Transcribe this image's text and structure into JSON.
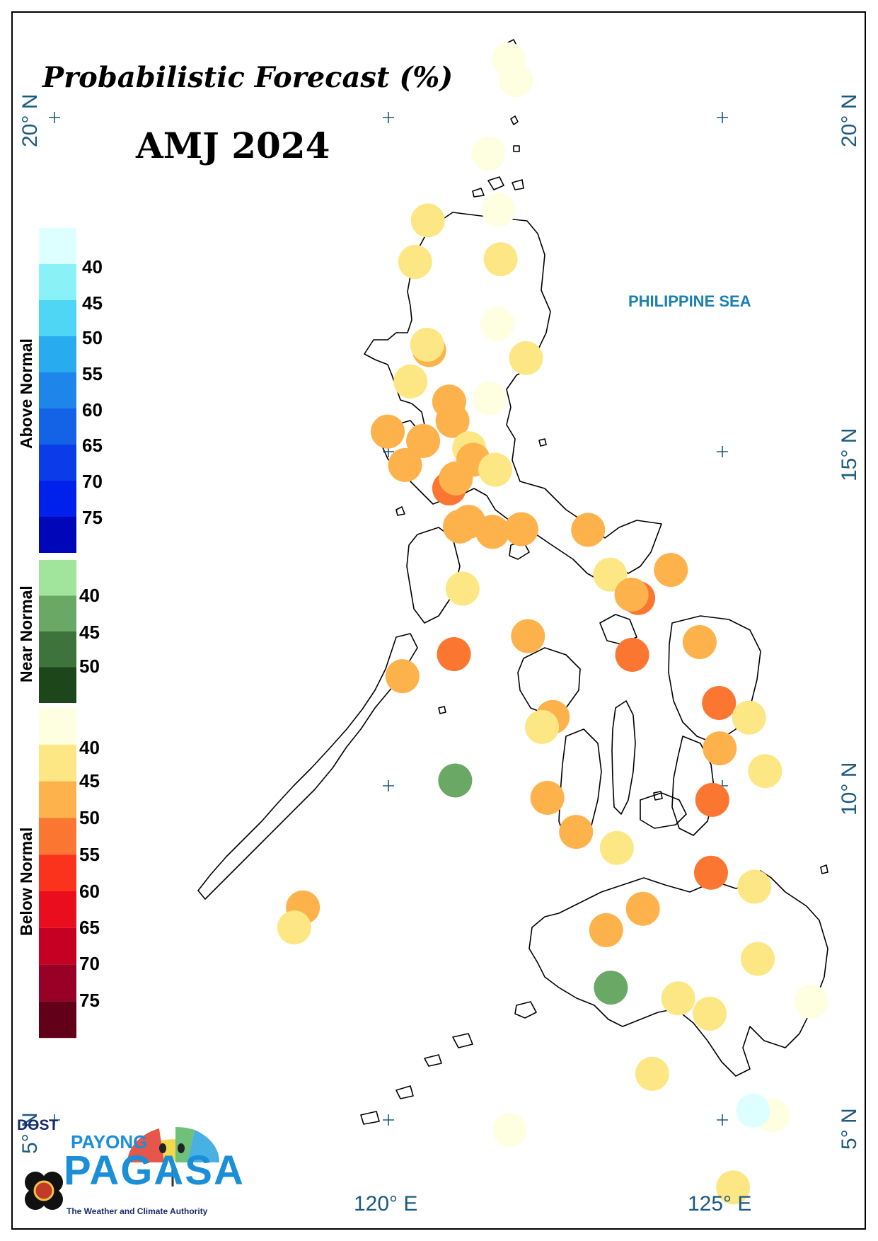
{
  "title": "Probabilistic Forecast (%)",
  "season": "AMJ 2024",
  "sea_label": "PHILIPPINE SEA",
  "lat_labels": [
    "20° N",
    "15° N",
    "10° N",
    "5° N"
  ],
  "lon_labels": [
    "120° E",
    "125° E"
  ],
  "legend": {
    "above": {
      "label": "Above Normal",
      "ticks": [
        "40",
        "45",
        "50",
        "55",
        "60",
        "65",
        "70",
        "75"
      ],
      "colors": [
        "#ddffff",
        "#8af1f6",
        "#50d6f5",
        "#29abef",
        "#1e86ea",
        "#1462e6",
        "#0a3de8",
        "#0020ec",
        "#0007b8"
      ]
    },
    "near": {
      "label": "Near Normal",
      "ticks": [
        "40",
        "45",
        "50"
      ],
      "colors": [
        "#a0e59b",
        "#6aa866",
        "#3e743c",
        "#1d471b"
      ]
    },
    "below": {
      "label": "Below Normal",
      "ticks": [
        "40",
        "45",
        "50",
        "55",
        "60",
        "65",
        "70",
        "75"
      ],
      "colors": [
        "#fefee0",
        "#fde784",
        "#fdb24c",
        "#fb7630",
        "#fc331c",
        "#ea0d1d",
        "#c50023",
        "#990026",
        "#620019"
      ]
    }
  },
  "logo": {
    "dost": "DOST",
    "payong": "PAYONG",
    "pagasa": "PAGASA",
    "tagline": "The Weather and Climate Authority"
  },
  "stations": [
    {
      "lon": 121.8,
      "lat": 20.87,
      "cat": "below",
      "bin": "<40"
    },
    {
      "lon": 121.91,
      "lat": 20.56,
      "cat": "below",
      "bin": "<40"
    },
    {
      "lon": 121.5,
      "lat": 19.46,
      "cat": "below",
      "bin": "<40"
    },
    {
      "lon": 121.65,
      "lat": 18.62,
      "cat": "below",
      "bin": "<40"
    },
    {
      "lon": 120.59,
      "lat": 18.46,
      "cat": "below",
      "bin": "40-45"
    },
    {
      "lon": 121.68,
      "lat": 17.88,
      "cat": "below",
      "bin": "40-45"
    },
    {
      "lon": 120.4,
      "lat": 17.84,
      "cat": "below",
      "bin": "40-45"
    },
    {
      "lon": 121.63,
      "lat": 16.91,
      "cat": "below",
      "bin": "<40"
    },
    {
      "lon": 120.61,
      "lat": 16.52,
      "cat": "below",
      "bin": "45-50"
    },
    {
      "lon": 120.58,
      "lat": 16.6,
      "cat": "below",
      "bin": "40-45"
    },
    {
      "lon": 122.06,
      "lat": 16.4,
      "cat": "below",
      "bin": "40-45"
    },
    {
      "lon": 120.33,
      "lat": 16.05,
      "cat": "below",
      "bin": "40-45"
    },
    {
      "lon": 121.52,
      "lat": 15.8,
      "cat": "below",
      "bin": "<40"
    },
    {
      "lon": 120.91,
      "lat": 15.75,
      "cat": "below",
      "bin": "45-50"
    },
    {
      "lon": 120.96,
      "lat": 15.46,
      "cat": "below",
      "bin": "45-50"
    },
    {
      "lon": 119.99,
      "lat": 15.3,
      "cat": "below",
      "bin": "45-50"
    },
    {
      "lon": 120.52,
      "lat": 15.16,
      "cat": "below",
      "bin": "45-50"
    },
    {
      "lon": 121.21,
      "lat": 15.05,
      "cat": "below",
      "bin": "40-45"
    },
    {
      "lon": 121.27,
      "lat": 14.88,
      "cat": "below",
      "bin": "45-50"
    },
    {
      "lon": 120.25,
      "lat": 14.8,
      "cat": "below",
      "bin": "45-50"
    },
    {
      "lon": 121.6,
      "lat": 14.73,
      "cat": "below",
      "bin": "40-45"
    },
    {
      "lon": 120.91,
      "lat": 14.45,
      "cat": "below",
      "bin": "50-55"
    },
    {
      "lon": 121.01,
      "lat": 14.6,
      "cat": "below",
      "bin": "45-50"
    },
    {
      "lon": 121.2,
      "lat": 13.95,
      "cat": "below",
      "bin": "45-50"
    },
    {
      "lon": 121.07,
      "lat": 13.88,
      "cat": "below",
      "bin": "45-50"
    },
    {
      "lon": 121.56,
      "lat": 13.8,
      "cat": "below",
      "bin": "45-50"
    },
    {
      "lon": 121.99,
      "lat": 13.84,
      "cat": "below",
      "bin": "45-50"
    },
    {
      "lon": 122.99,
      "lat": 13.83,
      "cat": "below",
      "bin": "45-50"
    },
    {
      "lon": 123.32,
      "lat": 13.16,
      "cat": "below",
      "bin": "40-45"
    },
    {
      "lon": 124.23,
      "lat": 13.23,
      "cat": "below",
      "bin": "45-50"
    },
    {
      "lon": 121.11,
      "lat": 12.95,
      "cat": "below",
      "bin": "40-45"
    },
    {
      "lon": 123.74,
      "lat": 12.81,
      "cat": "below",
      "bin": "50-55"
    },
    {
      "lon": 123.64,
      "lat": 12.86,
      "cat": "below",
      "bin": "45-50"
    },
    {
      "lon": 122.09,
      "lat": 12.24,
      "cat": "below",
      "bin": "45-50"
    },
    {
      "lon": 124.66,
      "lat": 12.15,
      "cat": "below",
      "bin": "45-50"
    },
    {
      "lon": 120.98,
      "lat": 11.97,
      "cat": "below",
      "bin": "50-55"
    },
    {
      "lon": 123.65,
      "lat": 11.96,
      "cat": "below",
      "bin": "50-55"
    },
    {
      "lon": 120.21,
      "lat": 11.64,
      "cat": "below",
      "bin": "45-50"
    },
    {
      "lon": 124.95,
      "lat": 11.24,
      "cat": "below",
      "bin": "50-55"
    },
    {
      "lon": 125.4,
      "lat": 11.02,
      "cat": "below",
      "bin": "40-45"
    },
    {
      "lon": 122.46,
      "lat": 11.03,
      "cat": "below",
      "bin": "45-50"
    },
    {
      "lon": 122.3,
      "lat": 10.88,
      "cat": "below",
      "bin": "40-45"
    },
    {
      "lon": 124.96,
      "lat": 10.56,
      "cat": "below",
      "bin": "45-50"
    },
    {
      "lon": 125.64,
      "lat": 10.22,
      "cat": "below",
      "bin": "40-45"
    },
    {
      "lon": 121.0,
      "lat": 10.08,
      "cat": "near",
      "bin": "40-45"
    },
    {
      "lon": 122.38,
      "lat": 9.82,
      "cat": "below",
      "bin": "45-50"
    },
    {
      "lon": 124.85,
      "lat": 9.79,
      "cat": "below",
      "bin": "50-55"
    },
    {
      "lon": 122.81,
      "lat": 9.31,
      "cat": "below",
      "bin": "45-50"
    },
    {
      "lon": 123.42,
      "lat": 9.07,
      "cat": "below",
      "bin": "40-45"
    },
    {
      "lon": 124.83,
      "lat": 8.7,
      "cat": "below",
      "bin": "50-55"
    },
    {
      "lon": 125.48,
      "lat": 8.49,
      "cat": "below",
      "bin": "40-45"
    },
    {
      "lon": 123.81,
      "lat": 8.16,
      "cat": "below",
      "bin": "45-50"
    },
    {
      "lon": 118.72,
      "lat": 8.18,
      "cat": "below",
      "bin": "45-50"
    },
    {
      "lon": 118.59,
      "lat": 7.88,
      "cat": "below",
      "bin": "40-45"
    },
    {
      "lon": 123.26,
      "lat": 7.84,
      "cat": "below",
      "bin": "45-50"
    },
    {
      "lon": 125.53,
      "lat": 7.41,
      "cat": "below",
      "bin": "40-45"
    },
    {
      "lon": 123.33,
      "lat": 6.98,
      "cat": "near",
      "bin": "40-45"
    },
    {
      "lon": 124.34,
      "lat": 6.82,
      "cat": "below",
      "bin": "40-45"
    },
    {
      "lon": 126.33,
      "lat": 6.77,
      "cat": "below",
      "bin": "<40"
    },
    {
      "lon": 124.81,
      "lat": 6.59,
      "cat": "below",
      "bin": "40-45"
    },
    {
      "lon": 123.95,
      "lat": 5.69,
      "cat": "below",
      "bin": "40-45"
    },
    {
      "lon": 125.75,
      "lat": 5.07,
      "cat": "below",
      "bin": "<40"
    },
    {
      "lon": 125.46,
      "lat": 5.14,
      "cat": "above",
      "bin": "<40"
    },
    {
      "lon": 121.82,
      "lat": 4.85,
      "cat": "below",
      "bin": "<40"
    },
    {
      "lon": 125.16,
      "lat": 3.99,
      "cat": "below",
      "bin": "40-45"
    }
  ]
}
